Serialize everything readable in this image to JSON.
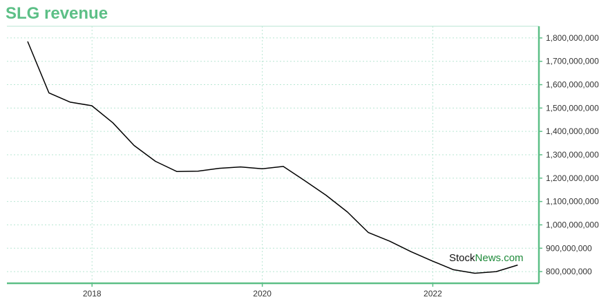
{
  "chart_data": {
    "type": "line",
    "title": "SLG revenue",
    "xlabel": "",
    "ylabel": "",
    "x_ticks": [
      "2018",
      "2020",
      "2022"
    ],
    "y_ticks": [
      "800,000,000",
      "900,000,000",
      "1,000,000,000",
      "1,100,000,000",
      "1,200,000,000",
      "1,300,000,000",
      "1,400,000,000",
      "1,500,000,000",
      "1,600,000,000",
      "1,700,000,000",
      "1,800,000,000"
    ],
    "ylim": [
      750000000,
      1850000000
    ],
    "grid": true,
    "colors": {
      "title": "#5cbf86",
      "axis": "#5cbf86",
      "grid": "#b7e6d2",
      "line": "#000000"
    },
    "series": [
      {
        "x": [
          "2017-03-31",
          "2017-06-30",
          "2017-09-30",
          "2017-12-31",
          "2018-03-31",
          "2018-06-30",
          "2018-09-30",
          "2018-12-31",
          "2019-03-31",
          "2019-06-30",
          "2019-09-30",
          "2019-12-31",
          "2020-03-31",
          "2020-06-30",
          "2020-09-30",
          "2020-12-31",
          "2021-03-31",
          "2021-06-30",
          "2021-09-30",
          "2021-12-31",
          "2022-03-31",
          "2022-06-30",
          "2022-09-30",
          "2022-12-31"
        ],
        "values": [
          1785000000,
          1565000000,
          1525000000,
          1510000000,
          1437000000,
          1340000000,
          1272000000,
          1228000000,
          1230000000,
          1242000000,
          1248000000,
          1240000000,
          1250000000,
          1190000000,
          1127000000,
          1055000000,
          967000000,
          930000000,
          885000000,
          845000000,
          808000000,
          793000000,
          800000000,
          828000000
        ]
      }
    ]
  },
  "watermark": {
    "part1": "Stock",
    "part2": "News.com"
  }
}
